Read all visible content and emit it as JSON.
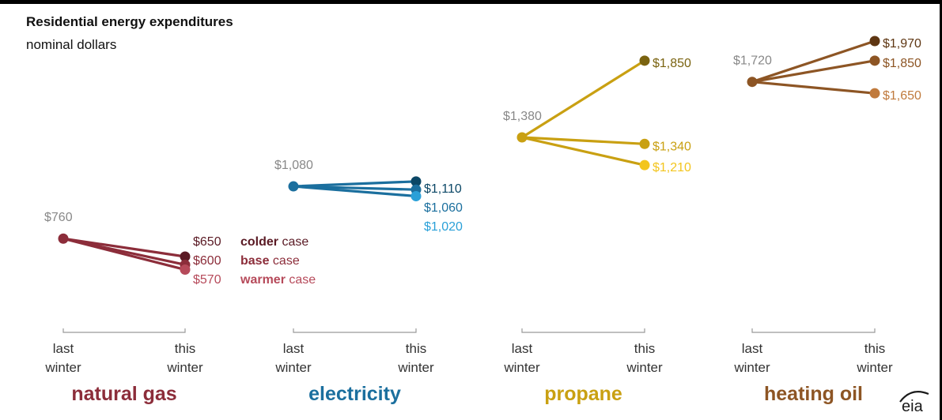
{
  "title": "Residential energy expenditures",
  "subtitle": "nominal dollars",
  "chart_data": {
    "type": "line",
    "x_labels": [
      [
        "last",
        "winter"
      ],
      [
        "this",
        "winter"
      ]
    ],
    "scenario_order": [
      "colder",
      "base",
      "warmer"
    ],
    "case_labels": [
      {
        "bold": "colder",
        "rest": " case"
      },
      {
        "bold": "base",
        "rest": " case"
      },
      {
        "bold": "warmer",
        "rest": " case"
      }
    ],
    "panels": [
      {
        "name": "natural gas",
        "color": "#8c2d3a",
        "last": 760,
        "last_label": "$760",
        "this": [
          650,
          600,
          570
        ],
        "this_labels": [
          "$650",
          "$600",
          "$570"
        ],
        "point_colors": [
          "#5a1a24",
          "#8c2d3a",
          "#b64a5a"
        ],
        "label_colors": [
          "#5a1a24",
          "#8c2d3a",
          "#b64a5a"
        ]
      },
      {
        "name": "electricity",
        "color": "#1b6f9e",
        "last": 1080,
        "last_label": "$1,080",
        "this": [
          1110,
          1060,
          1020
        ],
        "this_labels": [
          "$1,110",
          "$1,060",
          "$1,020"
        ],
        "point_colors": [
          "#0b4766",
          "#1b6f9e",
          "#2aa0d8"
        ],
        "label_colors": [
          "#0b4766",
          "#1b6f9e",
          "#2aa0d8"
        ]
      },
      {
        "name": "propane",
        "color": "#c9a012",
        "last": 1380,
        "last_label": "$1,380",
        "this": [
          1850,
          1340,
          1210
        ],
        "this_labels": [
          "$1,850",
          "$1,340",
          "$1,210"
        ],
        "point_colors": [
          "#7a6310",
          "#c9a012",
          "#f3c51e"
        ],
        "label_colors": [
          "#7a6310",
          "#c9a012",
          "#f3c51e"
        ]
      },
      {
        "name": "heating oil",
        "color": "#8d5524",
        "last": 1720,
        "last_label": "$1,720",
        "this": [
          1970,
          1850,
          1650
        ],
        "this_labels": [
          "$1,970",
          "$1,850",
          "$1,650"
        ],
        "point_colors": [
          "#5e3612",
          "#8d5524",
          "#c07a3c"
        ],
        "label_colors": [
          "#5e3612",
          "#8d5524",
          "#c07a3c"
        ]
      }
    ],
    "last_label_color": "#888888",
    "logo": "eia"
  }
}
